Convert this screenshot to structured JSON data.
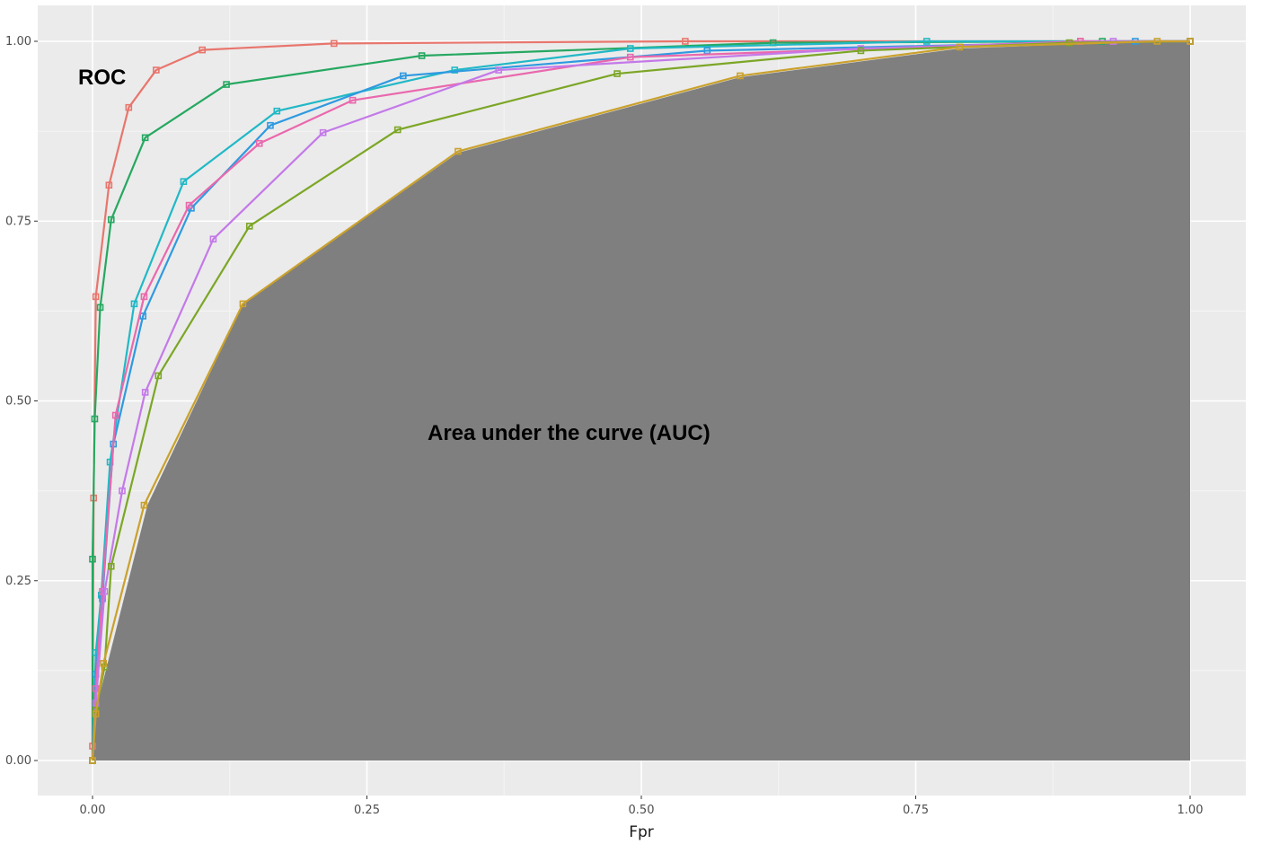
{
  "chart_data": {
    "type": "line",
    "xlabel": "Fpr",
    "ylabel": "",
    "xlim": [
      -0.05,
      1.05
    ],
    "ylim": [
      -0.05,
      1.05
    ],
    "x_ticks": [
      "0.00",
      "0.25",
      "0.50",
      "0.75",
      "1.00"
    ],
    "y_ticks": [
      "0.00",
      "0.25",
      "0.50",
      "0.75",
      "1.00"
    ],
    "x_tick_values": [
      0,
      0.25,
      0.5,
      0.75,
      1
    ],
    "y_tick_values": [
      0,
      0.25,
      0.5,
      0.75,
      1
    ],
    "grid": true,
    "legend": "none",
    "annotations": [
      {
        "text": "ROC",
        "x": -0.013,
        "y": 0.945
      },
      {
        "text": "Area under the curve (AUC)",
        "x": 0.305,
        "y": 0.455
      }
    ],
    "auc_fill": {
      "color": "#7f7f7f",
      "x": [
        0,
        0.003,
        0.05,
        0.137,
        0.333,
        0.59,
        0.79,
        0.97,
        1.0
      ],
      "y": [
        0,
        0.07,
        0.355,
        0.635,
        0.845,
        0.95,
        0.99,
        1.0,
        1.0
      ]
    },
    "series": [
      {
        "color": "#e8766d",
        "x": [
          0,
          0,
          0.001,
          0.003,
          0.015,
          0.033,
          0.058,
          0.1,
          0.22,
          0.54,
          0.9,
          1.0
        ],
        "y": [
          0,
          0.02,
          0.365,
          0.645,
          0.8,
          0.908,
          0.96,
          0.988,
          0.997,
          1.0,
          1.0,
          1.0
        ]
      },
      {
        "color": "#26a861",
        "x": [
          0,
          0,
          0.002,
          0.007,
          0.017,
          0.048,
          0.122,
          0.3,
          0.62,
          0.92,
          1.0
        ],
        "y": [
          0,
          0.28,
          0.475,
          0.63,
          0.752,
          0.866,
          0.94,
          0.98,
          0.998,
          1.0,
          1.0
        ]
      },
      {
        "color": "#21b8c6",
        "x": [
          0,
          0.003,
          0.008,
          0.016,
          0.038,
          0.083,
          0.168,
          0.33,
          0.49,
          0.76,
          1.0
        ],
        "y": [
          0,
          0.15,
          0.23,
          0.415,
          0.635,
          0.805,
          0.903,
          0.96,
          0.99,
          1.0,
          1.0
        ]
      },
      {
        "color": "#2f9ae0",
        "x": [
          0,
          0.003,
          0.009,
          0.019,
          0.046,
          0.09,
          0.162,
          0.283,
          0.56,
          0.95,
          1.0
        ],
        "y": [
          0,
          0.12,
          0.225,
          0.44,
          0.618,
          0.768,
          0.883,
          0.952,
          0.987,
          1.0,
          1.0
        ]
      },
      {
        "color": "#ea68ad",
        "x": [
          0,
          0.003,
          0.009,
          0.021,
          0.047,
          0.088,
          0.152,
          0.237,
          0.49,
          0.9,
          1.0
        ],
        "y": [
          0,
          0.1,
          0.235,
          0.48,
          0.645,
          0.772,
          0.858,
          0.918,
          0.978,
          1.0,
          1.0
        ]
      },
      {
        "color": "#c479e9",
        "x": [
          0,
          0.003,
          0.011,
          0.027,
          0.048,
          0.11,
          0.21,
          0.37,
          0.7,
          0.93,
          1.0
        ],
        "y": [
          0,
          0.08,
          0.235,
          0.375,
          0.512,
          0.725,
          0.873,
          0.96,
          0.99,
          1.0,
          1.0
        ]
      },
      {
        "color": "#7ca626",
        "x": [
          0,
          0.003,
          0.011,
          0.017,
          0.06,
          0.143,
          0.278,
          0.478,
          0.7,
          0.89,
          1.0
        ],
        "y": [
          0,
          0.07,
          0.13,
          0.27,
          0.535,
          0.743,
          0.877,
          0.955,
          0.987,
          0.998,
          1.0
        ]
      },
      {
        "color": "#caa12c",
        "x": [
          0,
          0.003,
          0.01,
          0.047,
          0.137,
          0.333,
          0.59,
          0.79,
          0.97,
          1.0
        ],
        "y": [
          0,
          0.065,
          0.135,
          0.355,
          0.635,
          0.847,
          0.952,
          0.992,
          1.0,
          1.0
        ]
      }
    ]
  }
}
